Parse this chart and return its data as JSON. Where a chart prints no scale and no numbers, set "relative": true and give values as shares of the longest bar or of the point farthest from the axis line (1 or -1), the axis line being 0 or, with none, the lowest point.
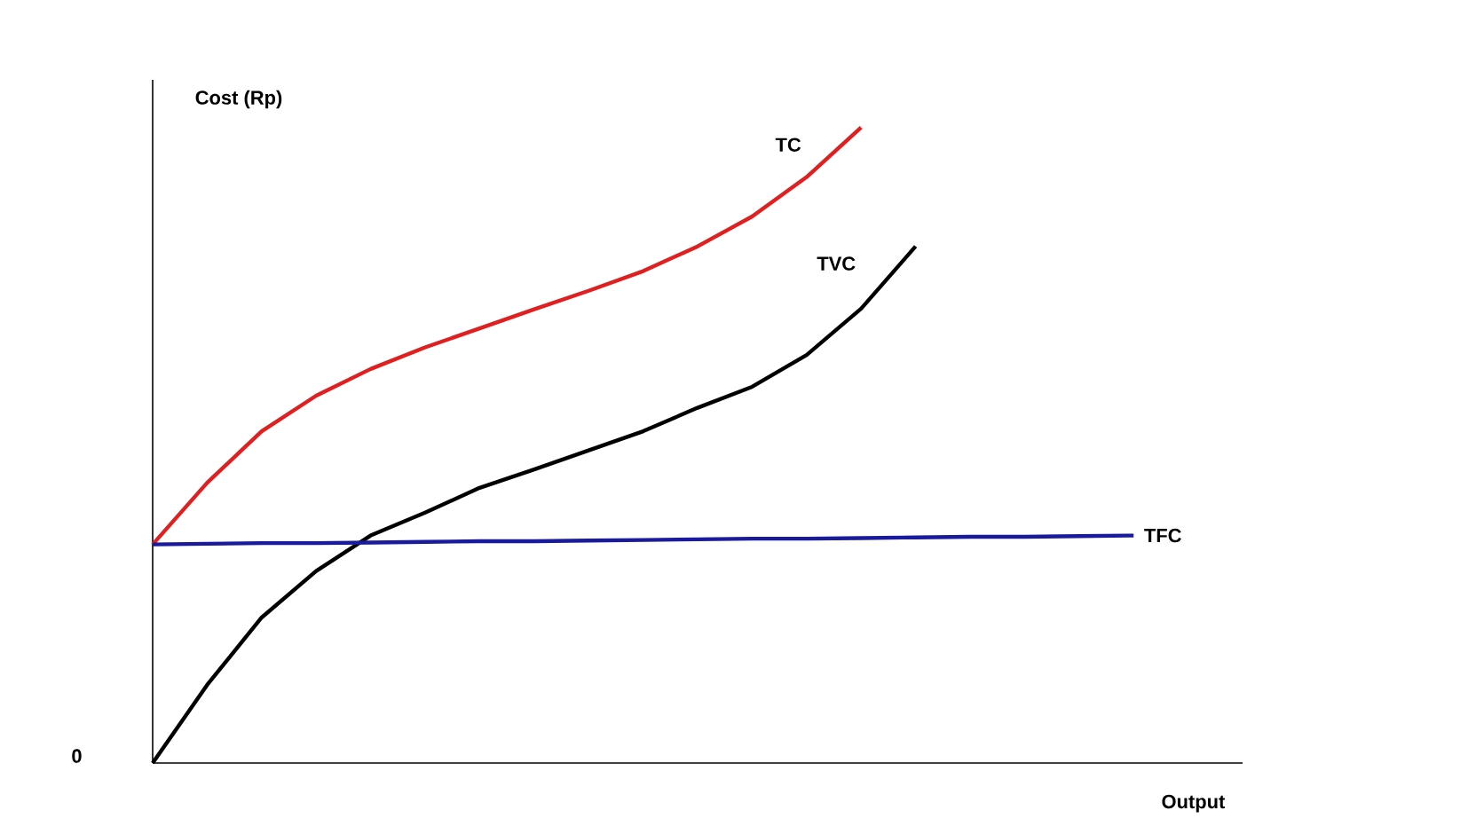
{
  "chart_data": {
    "type": "line",
    "relative": true,
    "xlabel": "Output",
    "ylabel": "Cost (Rp)",
    "annotations": [
      "0"
    ],
    "marker": "none",
    "line_style": "solid",
    "categories": [
      null,
      null,
      null,
      null,
      null,
      null,
      null,
      null,
      null,
      null,
      null,
      null,
      null,
      null,
      null,
      null,
      null,
      null,
      null,
      null,
      null
    ],
    "series": [
      {
        "name": "TC",
        "color": "#e02020",
        "values": [
          0.344,
          0.441,
          0.522,
          0.578,
          0.62,
          0.654,
          0.684,
          0.714,
          0.743,
          0.774,
          0.813,
          0.86,
          0.922,
          1,
          null,
          null,
          null,
          null,
          null,
          null,
          null
        ]
      },
      {
        "name": "TVC",
        "color": "#000000",
        "values": [
          0,
          0.123,
          0.229,
          0.302,
          0.358,
          0.394,
          0.433,
          0.462,
          0.492,
          0.522,
          0.559,
          0.592,
          0.642,
          0.715,
          0.813,
          null,
          null,
          null,
          null,
          null,
          null
        ]
      },
      {
        "name": "TFC",
        "color": "#1a1a9c",
        "values": [
          0.344,
          0.345,
          0.346,
          0.346,
          0.347,
          0.348,
          0.349,
          0.349,
          0.35,
          0.351,
          0.352,
          0.353,
          0.353,
          0.354,
          0.355,
          0.356,
          0.356,
          0.357,
          0.358,
          null,
          null
        ]
      }
    ]
  }
}
